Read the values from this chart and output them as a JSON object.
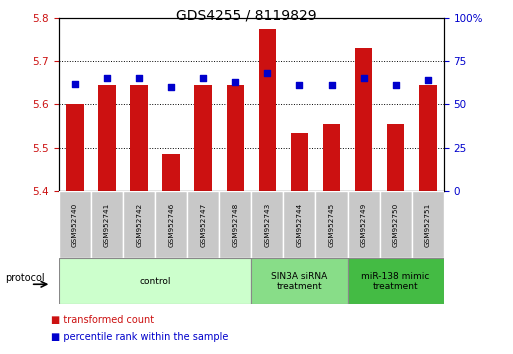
{
  "title": "GDS4255 / 8119829",
  "samples": [
    "GSM952740",
    "GSM952741",
    "GSM952742",
    "GSM952746",
    "GSM952747",
    "GSM952748",
    "GSM952743",
    "GSM952744",
    "GSM952745",
    "GSM952749",
    "GSM952750",
    "GSM952751"
  ],
  "transformed_count": [
    5.6,
    5.645,
    5.645,
    5.485,
    5.645,
    5.645,
    5.775,
    5.535,
    5.555,
    5.73,
    5.555,
    5.645
  ],
  "percentile_rank": [
    62,
    65,
    65,
    60,
    65,
    63,
    68,
    61,
    61,
    65,
    61,
    64
  ],
  "group_colors": [
    "#ccffcc",
    "#88dd88",
    "#44bb44"
  ],
  "group_labels": [
    "control",
    "SIN3A siRNA\ntreatment",
    "miR-138 mimic\ntreatment"
  ],
  "group_ranges": [
    [
      0,
      5
    ],
    [
      6,
      8
    ],
    [
      9,
      11
    ]
  ],
  "ylim_left": [
    5.4,
    5.8
  ],
  "ylim_right": [
    0,
    100
  ],
  "yticks_left": [
    5.4,
    5.5,
    5.6,
    5.7,
    5.8
  ],
  "yticks_right": [
    0,
    25,
    50,
    75,
    100
  ],
  "bar_color": "#cc1111",
  "dot_color": "#0000cc",
  "bar_bottom": 5.4,
  "title_fontsize": 10,
  "axis_label_color_left": "#cc1111",
  "axis_label_color_right": "#0000cc",
  "legend_items": [
    {
      "label": "transformed count",
      "color": "#cc1111"
    },
    {
      "label": "percentile rank within the sample",
      "color": "#0000cc"
    }
  ]
}
